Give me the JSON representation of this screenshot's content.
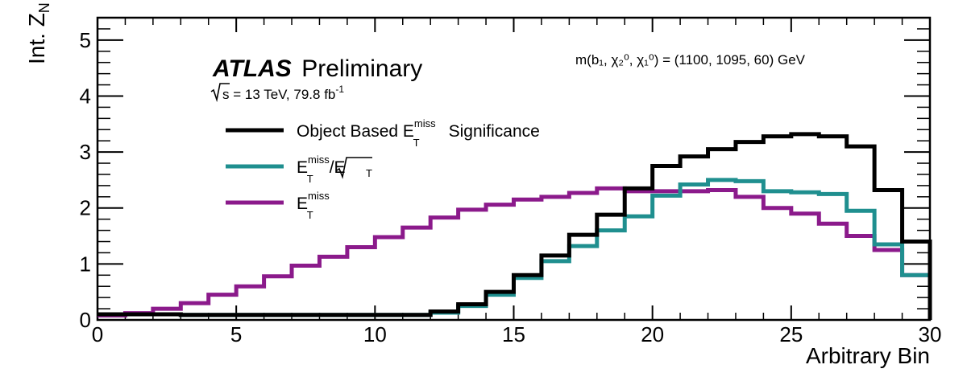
{
  "chart_data": {
    "type": "step",
    "xlabel": "Arbitrary Bin",
    "ylabel_main": "Int. Z",
    "ylabel_sub": "N",
    "xlim": [
      0,
      30
    ],
    "ylim": [
      0,
      5.4
    ],
    "xticks": [
      0,
      5,
      10,
      15,
      20,
      25,
      30
    ],
    "yticks": [
      0,
      1,
      2,
      3,
      4,
      5
    ],
    "atlas_label": "ATLAS",
    "atlas_status": "Preliminary",
    "energy_label": "s = 13 TeV, 79.8 fb",
    "energy_sup": "-1",
    "model_label": "m(b₁, χ₂⁰, χ₁⁰) = (1100, 1095, 60) GeV",
    "legend_position": "top-left",
    "series": [
      {
        "name": "Object Based E_T^miss Significance",
        "legend_main": "Object Based E",
        "legend_sup": "miss",
        "legend_sub": "T",
        "legend_tail": "Significance",
        "color": "#000000",
        "values": [
          0.1,
          0.1,
          0.1,
          0.09,
          0.09,
          0.09,
          0.09,
          0.09,
          0.09,
          0.09,
          0.09,
          0.09,
          0.15,
          0.28,
          0.5,
          0.8,
          1.15,
          1.52,
          1.88,
          2.35,
          2.75,
          2.92,
          3.05,
          3.18,
          3.28,
          3.32,
          3.28,
          3.1,
          2.32,
          1.4
        ]
      },
      {
        "name": "E_T^miss/sqrt(E_T)",
        "legend_main": "E",
        "legend_sup": "miss",
        "legend_sub": "T",
        "legend_tail": "/E",
        "color": "#1f8f8f",
        "values": [
          0.1,
          0.1,
          0.1,
          0.09,
          0.09,
          0.09,
          0.09,
          0.09,
          0.09,
          0.09,
          0.09,
          0.09,
          0.13,
          0.25,
          0.45,
          0.75,
          1.05,
          1.32,
          1.6,
          1.85,
          2.22,
          2.42,
          2.5,
          2.48,
          2.3,
          2.28,
          2.25,
          1.95,
          1.35,
          0.8
        ]
      },
      {
        "name": "E_T^miss",
        "legend_main": "E",
        "legend_sup": "miss",
        "legend_sub": "T",
        "legend_tail": "",
        "color": "#8b1a8b",
        "values": [
          0.08,
          0.12,
          0.2,
          0.3,
          0.45,
          0.6,
          0.78,
          0.97,
          1.13,
          1.3,
          1.48,
          1.65,
          1.83,
          1.97,
          2.06,
          2.15,
          2.2,
          2.27,
          2.35,
          2.3,
          2.3,
          2.3,
          2.32,
          2.2,
          2.0,
          1.9,
          1.72,
          1.5,
          1.25,
          0.8
        ]
      }
    ]
  }
}
